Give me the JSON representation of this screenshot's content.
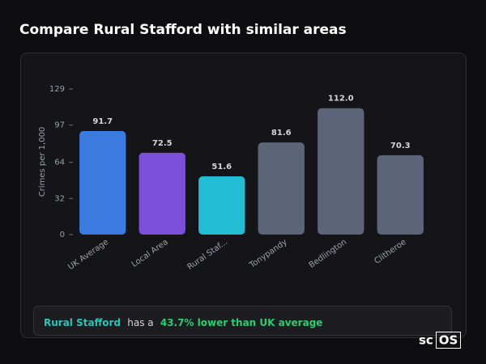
{
  "header": {
    "title": "Compare Rural Stafford with similar areas"
  },
  "chart_data": {
    "type": "bar",
    "y_label": "Crimes per 1,000",
    "categories": [
      "UK Average",
      "Local Area",
      "Rural Staf...",
      "Tonypandy",
      "Bedlington",
      "Clitheroe"
    ],
    "values": [
      91.7,
      72.5,
      51.6,
      81.6,
      112.0,
      70.3
    ],
    "value_labels": [
      "91.7",
      "72.5",
      "51.6",
      "81.6",
      "112.0",
      "70.3"
    ],
    "colors": [
      "#3b7be0",
      "#7b4fd8",
      "#22bcd4",
      "#5b6478",
      "#5b6478",
      "#5b6478"
    ],
    "ylim": [
      0,
      129
    ],
    "yticks": [
      0,
      32,
      64,
      97,
      129
    ]
  },
  "summary": {
    "area": "Rural Stafford",
    "text": "has a",
    "comparison": "43.7% lower than UK average"
  },
  "logo": {
    "prefix": "sc",
    "boxed": "OS"
  }
}
